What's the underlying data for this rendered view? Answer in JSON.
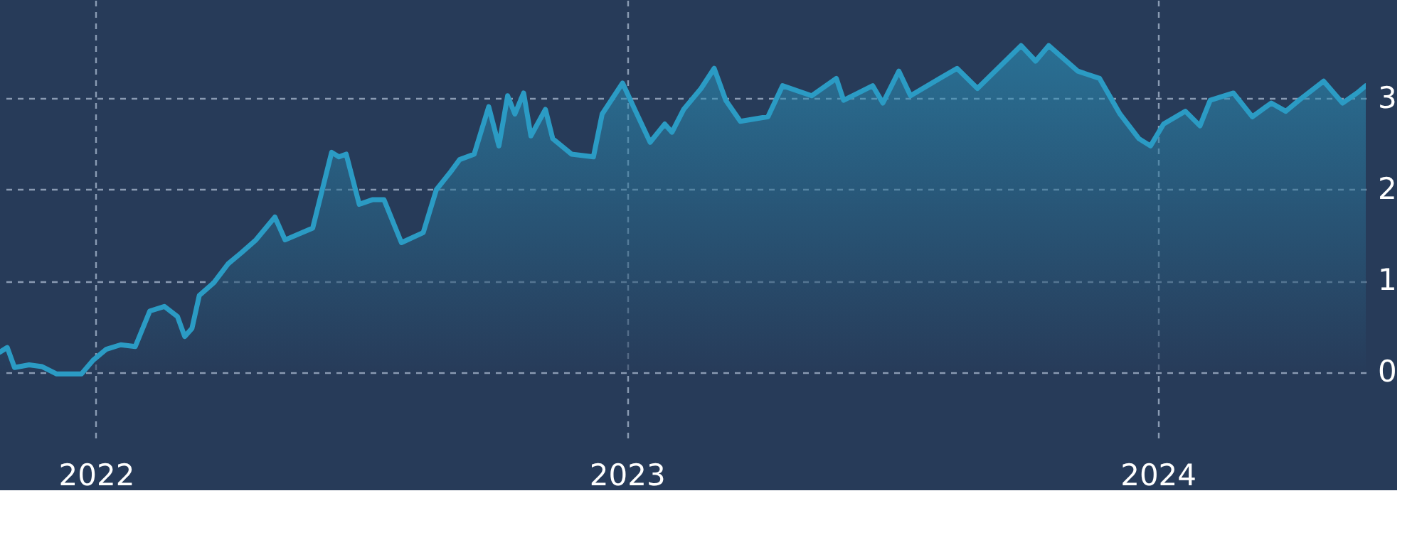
{
  "chart_data": {
    "type": "area",
    "x": [
      "2021-10-27",
      "2021-11-01",
      "2021-11-06",
      "2021-11-16",
      "2021-11-25",
      "2021-12-05",
      "2021-12-22",
      "2021-12-30",
      "2022-01-08",
      "2022-01-18",
      "2022-01-28",
      "2022-02-07",
      "2022-02-17",
      "2022-02-26",
      "2022-03-03",
      "2022-03-08",
      "2022-03-13",
      "2022-03-23",
      "2022-04-02",
      "2022-04-11",
      "2022-04-21",
      "2022-05-04",
      "2022-05-11",
      "2022-05-30",
      "2022-06-12",
      "2022-06-17",
      "2022-06-22",
      "2022-07-01",
      "2022-07-10",
      "2022-07-18",
      "2022-07-30",
      "2022-08-14",
      "2022-08-23",
      "2022-09-02",
      "2022-09-08",
      "2022-09-18",
      "2022-09-28",
      "2022-10-05",
      "2022-10-11",
      "2022-10-16",
      "2022-10-22",
      "2022-10-27",
      "2022-11-06",
      "2022-11-11",
      "2022-11-24",
      "2022-12-09",
      "2022-12-15",
      "2022-12-29",
      "2023-01-07",
      "2023-01-17",
      "2023-01-27",
      "2023-02-01",
      "2023-02-09",
      "2023-02-21",
      "2023-03-02",
      "2023-03-10",
      "2023-03-20",
      "2023-04-08",
      "2023-04-18",
      "2023-05-08",
      "2023-05-25",
      "2023-05-30",
      "2023-06-19",
      "2023-06-26",
      "2023-07-07",
      "2023-07-15",
      "2023-08-04",
      "2023-08-16",
      "2023-08-30",
      "2023-09-29",
      "2023-10-09",
      "2023-10-18",
      "2023-11-07",
      "2023-11-22",
      "2023-12-06",
      "2023-12-19",
      "2023-12-27",
      "2024-01-05",
      "2024-01-20",
      "2024-01-30",
      "2024-02-06",
      "2024-02-22",
      "2024-03-06",
      "2024-03-19",
      "2024-03-29",
      "2024-04-07",
      "2024-04-24",
      "2024-05-07",
      "2024-05-17",
      "2024-05-23"
    ],
    "series": [
      {
        "color": "#2b9bc4",
        "values": [
          0.22,
          0.27,
          0.05,
          0.08,
          0.06,
          -0.02,
          -0.02,
          0.13,
          0.25,
          0.3,
          0.28,
          0.67,
          0.72,
          0.61,
          0.39,
          0.48,
          0.84,
          0.98,
          1.19,
          1.31,
          1.45,
          1.7,
          1.45,
          1.58,
          2.41,
          2.36,
          2.39,
          1.84,
          1.89,
          1.89,
          1.42,
          1.53,
          2.0,
          2.2,
          2.33,
          2.39,
          2.91,
          2.48,
          3.03,
          2.83,
          3.06,
          2.59,
          2.88,
          2.56,
          2.39,
          2.36,
          2.83,
          3.17,
          2.86,
          2.52,
          2.72,
          2.63,
          2.88,
          3.11,
          3.33,
          2.98,
          2.75,
          2.8,
          3.14,
          3.03,
          3.22,
          2.98,
          3.14,
          2.95,
          3.3,
          3.03,
          3.22,
          3.33,
          3.11,
          3.58,
          3.41,
          3.58,
          3.3,
          3.22,
          2.83,
          2.56,
          2.48,
          2.72,
          2.86,
          2.7,
          2.98,
          3.06,
          2.8,
          2.95,
          2.86,
          2.98,
          3.19,
          2.95,
          3.06,
          3.14
        ]
      }
    ],
    "xlim": [
      "2021-10-27",
      "2024-05-23"
    ],
    "xticks": [
      {
        "value": "2022-01-01",
        "label": "2022"
      },
      {
        "value": "2023-01-01",
        "label": "2023"
      },
      {
        "value": "2024-01-01",
        "label": "2024"
      }
    ],
    "ylim": [
      -0.75,
      4.08
    ],
    "yticks": [
      0,
      1,
      2,
      3
    ],
    "grid": true,
    "line_style": "solid",
    "marker": "none"
  }
}
